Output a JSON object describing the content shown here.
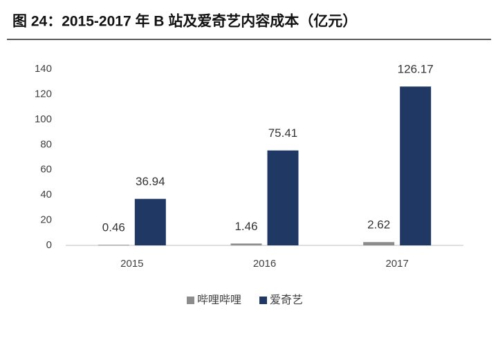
{
  "chart_data": {
    "type": "bar",
    "title": "图 24：2015-2017 年 B 站及爱奇艺内容成本（亿元）",
    "categories": [
      "2015",
      "2016",
      "2017"
    ],
    "series": [
      {
        "name": "哔哩哔哩",
        "color": "#8c8c8c",
        "values": [
          0.46,
          1.46,
          2.62
        ]
      },
      {
        "name": "爱奇艺",
        "color": "#1f3864",
        "values": [
          36.94,
          75.41,
          126.17
        ]
      }
    ],
    "ylim": [
      0,
      140
    ],
    "yticks": [
      0,
      20,
      40,
      60,
      80,
      100,
      120,
      140
    ],
    "grid": false,
    "legend": "bottom"
  }
}
